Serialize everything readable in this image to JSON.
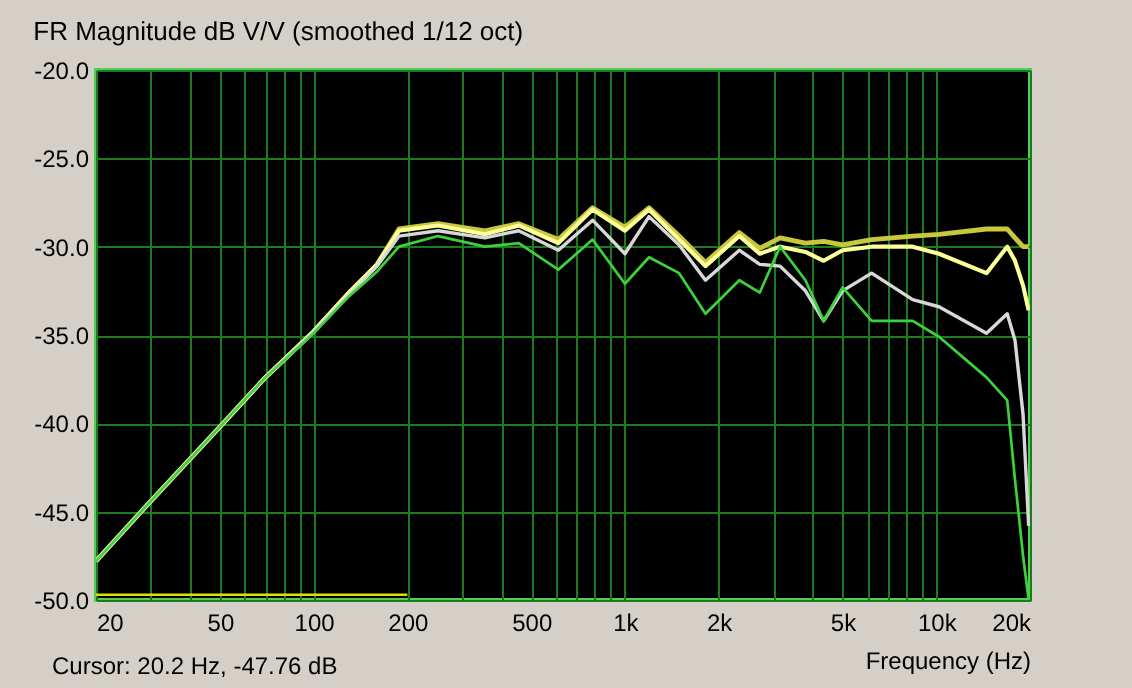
{
  "chart_data": {
    "type": "line",
    "title": "FR Magnitude dB V/V (smoothed 1/12 oct)",
    "xlabel": "Frequency (Hz)",
    "annotations": [
      "Cursor: 20.2 Hz, -47.76 dB"
    ],
    "log": "x",
    "grid": true,
    "line_style": "solid",
    "xlim": [
      20,
      20000
    ],
    "ylim": [
      -50,
      -20
    ],
    "xticks": [
      20,
      {
        "value": 30,
        "label": null
      },
      {
        "value": 40,
        "label": null
      },
      50,
      {
        "value": 60,
        "label": null
      },
      {
        "value": 70,
        "label": null
      },
      {
        "value": 80,
        "label": null
      },
      {
        "value": 90,
        "label": null
      },
      100,
      200,
      {
        "value": 300,
        "label": null
      },
      {
        "value": 400,
        "label": null
      },
      500,
      {
        "value": 600,
        "label": null
      },
      {
        "value": 700,
        "label": null
      },
      {
        "value": 800,
        "label": null
      },
      {
        "value": 900,
        "label": null
      },
      {
        "value": 1000,
        "label": "1k"
      },
      {
        "value": 2000,
        "label": "2k"
      },
      {
        "value": 3000,
        "label": null
      },
      {
        "value": 4000,
        "label": null
      },
      {
        "value": 5000,
        "label": "5k"
      },
      {
        "value": 6000,
        "label": null
      },
      {
        "value": 7000,
        "label": null
      },
      {
        "value": 8000,
        "label": null
      },
      {
        "value": 9000,
        "label": null
      },
      {
        "value": 10000,
        "label": "10k"
      },
      {
        "value": 20000,
        "label": "20k"
      }
    ],
    "yticks": [
      {
        "value": -50,
        "label": "-50.0"
      },
      {
        "value": -45,
        "label": "-45.0"
      },
      {
        "value": -40,
        "label": "-40.0"
      },
      {
        "value": -35,
        "label": "-35.0"
      },
      {
        "value": -30,
        "label": "-30.0"
      },
      {
        "value": -25,
        "label": "-25.0"
      },
      {
        "value": -20,
        "label": "-20.0"
      }
    ],
    "x": [
      20,
      30,
      50,
      70,
      100,
      130,
      160,
      188,
      251,
      355,
      456,
      611,
      787,
      1000,
      1195,
      1493,
      1814,
      2330,
      2710,
      3150,
      3800,
      4350,
      5000,
      6200,
      8400,
      10200,
      14500,
      16900,
      17900,
      19000,
      19800
    ],
    "series": [
      {
        "color": "#c8c83c",
        "values": [
          -47.8,
          -44.4,
          -40.2,
          -37.4,
          -34.8,
          -32.6,
          -31.0,
          -29.0,
          -28.7,
          -29.1,
          -28.7,
          -29.6,
          -27.8,
          -28.9,
          -27.8,
          -29.4,
          -30.9,
          -29.2,
          -30.1,
          -29.5,
          -29.8,
          -29.7,
          -29.9,
          -29.6,
          -29.4,
          -29.3,
          -29.0,
          -29.0,
          -29.5,
          -30.0,
          -30.0
        ]
      },
      {
        "color": "#ffff99",
        "values": [
          -47.8,
          -44.4,
          -40.2,
          -37.4,
          -34.8,
          -32.6,
          -31.0,
          -29.1,
          -28.8,
          -29.3,
          -28.8,
          -29.8,
          -27.9,
          -29.1,
          -27.9,
          -29.6,
          -31.1,
          -29.4,
          -30.4,
          -30.0,
          -30.3,
          -30.8,
          -30.2,
          -30.0,
          -30.0,
          -30.4,
          -31.5,
          -30.0,
          -30.8,
          -32.2,
          -33.6
        ]
      },
      {
        "color": "#d8d8d8",
        "values": [
          -47.8,
          -44.4,
          -40.2,
          -37.4,
          -34.8,
          -32.7,
          -31.1,
          -29.4,
          -29.1,
          -29.5,
          -29.1,
          -30.2,
          -28.5,
          -30.4,
          -28.3,
          -29.9,
          -31.9,
          -30.2,
          -31.0,
          -31.1,
          -32.5,
          -34.2,
          -32.5,
          -31.5,
          -33.0,
          -33.4,
          -34.9,
          -33.8,
          -35.3,
          -39.5,
          -45.8
        ]
      },
      {
        "color": "#3cd23c",
        "values": [
          -47.8,
          -44.4,
          -40.2,
          -37.4,
          -34.9,
          -32.8,
          -31.4,
          -30.0,
          -29.4,
          -30.0,
          -29.8,
          -31.3,
          -29.6,
          -32.1,
          -30.6,
          -31.5,
          -33.8,
          -31.9,
          -32.6,
          -30.0,
          -31.9,
          -34.2,
          -32.3,
          -34.2,
          -34.2,
          -35.1,
          -37.4,
          -38.7,
          -43.2,
          -47.5,
          -50.0
        ]
      },
      {
        "type": "line",
        "color": "#e0e000",
        "x": [
          20,
          200
        ],
        "values": [
          -49.7,
          -49.7
        ]
      }
    ]
  }
}
